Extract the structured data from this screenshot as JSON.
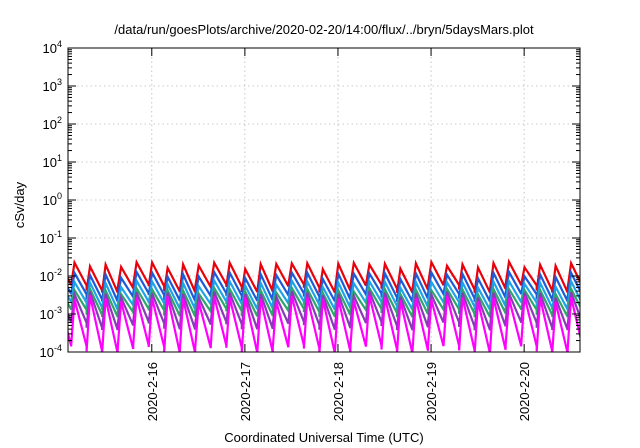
{
  "chart_data": {
    "type": "line",
    "title": "/data/run/goesPlots/archive/2020-02-20/14:00/flux/../bryn/5daysMars.plot",
    "xlabel": "Coordinated Universal Time (UTC)",
    "ylabel": "cSv/day",
    "y_scale": "log",
    "ylim": [
      0.0001,
      10000
    ],
    "xlim_days": [
      15.1,
      20.6
    ],
    "y_ticks": [
      {
        "value": 0.0001,
        "base": "10",
        "exp": "-4"
      },
      {
        "value": 0.001,
        "base": "10",
        "exp": "-3"
      },
      {
        "value": 0.01,
        "base": "10",
        "exp": "-2"
      },
      {
        "value": 0.1,
        "base": "10",
        "exp": "-1"
      },
      {
        "value": 1,
        "base": "10",
        "exp": "0"
      },
      {
        "value": 10,
        "base": "10",
        "exp": "1"
      },
      {
        "value": 100,
        "base": "10",
        "exp": "2"
      },
      {
        "value": 1000,
        "base": "10",
        "exp": "3"
      },
      {
        "value": 10000,
        "base": "10",
        "exp": "4"
      }
    ],
    "x_ticks": [
      {
        "day": 16,
        "label": "2020-2-16"
      },
      {
        "day": 17,
        "label": "2020-2-17"
      },
      {
        "day": 18,
        "label": "2020-2-18"
      },
      {
        "day": 19,
        "label": "2020-2-19"
      },
      {
        "day": 20,
        "label": "2020-2-20"
      }
    ],
    "grid": true,
    "sawtooth_period_days": 0.1667,
    "series": [
      {
        "color": "#e8000b",
        "peak": 0.02,
        "trough": 0.0048,
        "peak_var": 0.25
      },
      {
        "color": "#1e5bd8",
        "peak": 0.011,
        "trough": 0.0028,
        "peak_var": 0.25
      },
      {
        "color": "#1ea3e8",
        "peak": 0.0065,
        "trough": 0.0017,
        "peak_var": 0.25
      },
      {
        "color": "#2ea66b",
        "peak": 0.0042,
        "trough": 0.0011,
        "peak_var": 0.22
      },
      {
        "color": "#8a3ab8",
        "peak": 0.0034,
        "trough": 0.0005,
        "peak_var": 0.22
      },
      {
        "color": "#ff00ff",
        "peak": 0.0026,
        "trough": 0.00012,
        "peak_var": 0.22
      }
    ]
  }
}
